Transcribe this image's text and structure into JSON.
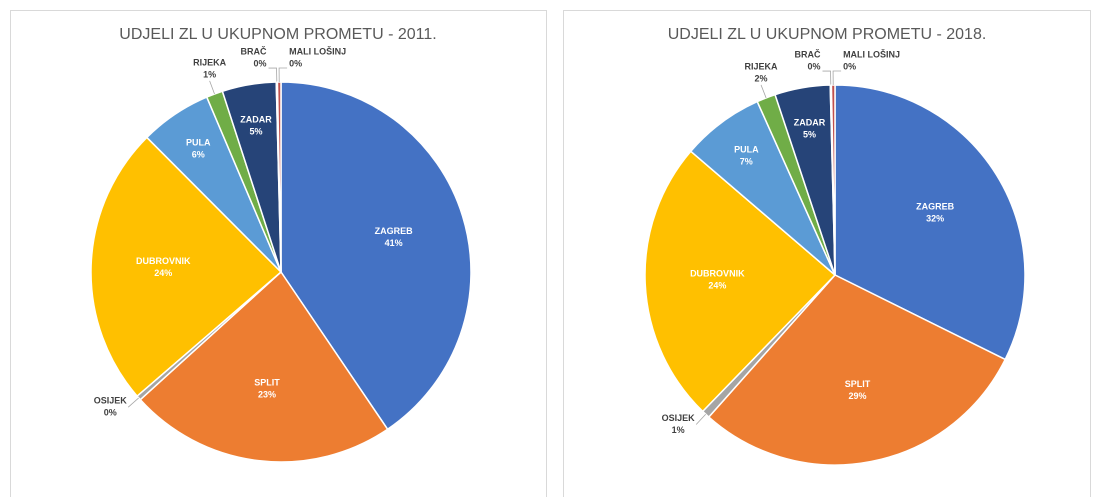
{
  "chart_data": [
    {
      "type": "pie",
      "title": "UDJELI ZL U UKUPNOM PROMETU - 2011.",
      "categories": [
        "ZAGREB",
        "SPLIT",
        "OSIJEK",
        "DUBROVNIK",
        "PULA",
        "RIJEKA",
        "ZADAR",
        "BRAČ",
        "MALI LOŠINJ"
      ],
      "values": [
        40.6,
        22.8,
        0.4,
        23.9,
        6.1,
        1.4,
        4.6,
        0.1,
        0.3
      ],
      "value_labels": [
        "41%",
        "23%",
        "0%",
        "24%",
        "6%",
        "1%",
        "5%",
        "0%",
        "0%"
      ],
      "colors": [
        "#4472c4",
        "#ed7d31",
        "#a5a5a5",
        "#ffc000",
        "#5b9bd5",
        "#70ad47",
        "#264478",
        "#9e480e",
        "#c0504d"
      ]
    },
    {
      "type": "pie",
      "title": "UDJELI ZL U UKUPNOM PROMETU - 2018.",
      "categories": [
        "ZAGREB",
        "SPLIT",
        "OSIJEK",
        "DUBROVNIK",
        "PULA",
        "RIJEKA",
        "ZADAR",
        "BRAČ",
        "MALI LOŠINJ"
      ],
      "values": [
        32.3,
        29.2,
        0.7,
        24.0,
        7.0,
        1.6,
        4.7,
        0.1,
        0.3
      ],
      "value_labels": [
        "32%",
        "29%",
        "1%",
        "24%",
        "7%",
        "2%",
        "5%",
        "0%",
        "0%"
      ],
      "colors": [
        "#4472c4",
        "#ed7d31",
        "#a5a5a5",
        "#ffc000",
        "#5b9bd5",
        "#70ad47",
        "#264478",
        "#9e480e",
        "#c0504d"
      ]
    }
  ]
}
